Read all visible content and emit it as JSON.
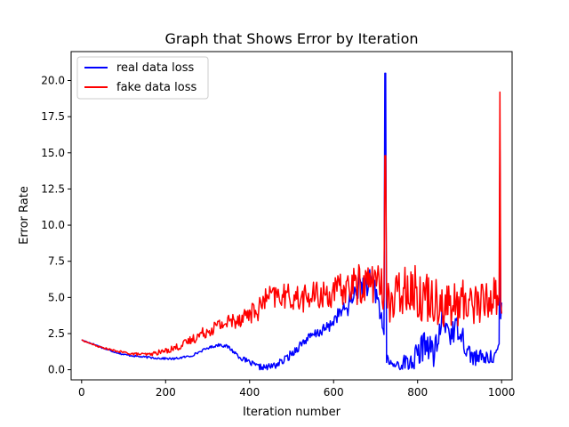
{
  "chart_data": {
    "type": "line",
    "title": "Graph that Shows Error by Iteration",
    "xlabel": "Iteration number",
    "ylabel": "Error Rate",
    "xlim": [
      -25,
      1025
    ],
    "ylim": [
      -0.7,
      22.0
    ],
    "x_ticks": [
      0,
      200,
      400,
      600,
      800,
      1000
    ],
    "x_tick_labels": [
      "0",
      "200",
      "400",
      "600",
      "800",
      "1000"
    ],
    "y_ticks": [
      0.0,
      2.5,
      5.0,
      7.5,
      10.0,
      12.5,
      15.0,
      17.5,
      20.0
    ],
    "y_tick_labels": [
      "0.0",
      "2.5",
      "5.0",
      "7.5",
      "10.0",
      "12.5",
      "15.0",
      "17.5",
      "20.0"
    ],
    "grid": false,
    "legend_position": "top-left",
    "series": [
      {
        "name": "real data loss",
        "color": "#0000ff",
        "anchors": [
          [
            0,
            2.05
          ],
          [
            30,
            1.75
          ],
          [
            60,
            1.4
          ],
          [
            100,
            1.05
          ],
          [
            140,
            0.9
          ],
          [
            180,
            0.8
          ],
          [
            220,
            0.75
          ],
          [
            260,
            0.95
          ],
          [
            300,
            1.5
          ],
          [
            330,
            1.75
          ],
          [
            350,
            1.55
          ],
          [
            380,
            0.8
          ],
          [
            420,
            0.2
          ],
          [
            440,
            0.15
          ],
          [
            460,
            0.3
          ],
          [
            480,
            0.6
          ],
          [
            500,
            1.1
          ],
          [
            530,
            2.0
          ],
          [
            560,
            2.5
          ],
          [
            590,
            3.0
          ],
          [
            610,
            3.8
          ],
          [
            630,
            4.2
          ],
          [
            660,
            5.8
          ],
          [
            680,
            6.0
          ],
          [
            700,
            5.5
          ],
          [
            715,
            3.5
          ],
          [
            725,
            0.8
          ],
          [
            740,
            0.3
          ],
          [
            760,
            0.4
          ],
          [
            780,
            0.5
          ],
          [
            800,
            0.9
          ],
          [
            820,
            2.0
          ],
          [
            840,
            1.0
          ],
          [
            860,
            3.5
          ],
          [
            880,
            2.5
          ],
          [
            900,
            3.0
          ],
          [
            920,
            1.2
          ],
          [
            940,
            0.8
          ],
          [
            960,
            0.8
          ],
          [
            980,
            0.9
          ],
          [
            994,
            1.5
          ],
          [
            1000,
            4.5
          ]
        ],
        "spikes": [
          [
            723,
            20.5
          ],
          [
            996,
            15.2
          ]
        ],
        "noise": [
          [
            0,
            0.05
          ],
          [
            300,
            0.08
          ],
          [
            600,
            0.4
          ],
          [
            700,
            1.2
          ],
          [
            730,
            0.25
          ],
          [
            800,
            1.0
          ],
          [
            900,
            0.9
          ],
          [
            1000,
            0.3
          ]
        ]
      },
      {
        "name": "fake data loss",
        "color": "#ff0000",
        "anchors": [
          [
            0,
            2.05
          ],
          [
            40,
            1.6
          ],
          [
            80,
            1.3
          ],
          [
            120,
            1.1
          ],
          [
            160,
            1.05
          ],
          [
            200,
            1.3
          ],
          [
            240,
            1.7
          ],
          [
            280,
            2.4
          ],
          [
            320,
            3.0
          ],
          [
            360,
            3.4
          ],
          [
            400,
            3.9
          ],
          [
            420,
            4.1
          ],
          [
            440,
            5.0
          ],
          [
            480,
            5.1
          ],
          [
            520,
            4.9
          ],
          [
            560,
            5.1
          ],
          [
            600,
            5.3
          ],
          [
            640,
            5.8
          ],
          [
            680,
            6.0
          ],
          [
            700,
            6.3
          ],
          [
            720,
            5.0
          ],
          [
            740,
            4.5
          ],
          [
            760,
            5.5
          ],
          [
            780,
            6.0
          ],
          [
            800,
            5.2
          ],
          [
            840,
            5.0
          ],
          [
            880,
            4.3
          ],
          [
            920,
            4.8
          ],
          [
            960,
            4.6
          ],
          [
            980,
            5.2
          ],
          [
            1000,
            5.0
          ]
        ],
        "spikes": [
          [
            723,
            14.8
          ],
          [
            996,
            19.2
          ]
        ],
        "noise": [
          [
            0,
            0.03
          ],
          [
            150,
            0.1
          ],
          [
            250,
            0.3
          ],
          [
            350,
            0.6
          ],
          [
            450,
            0.8
          ],
          [
            600,
            1.1
          ],
          [
            700,
            1.6
          ],
          [
            800,
            1.8
          ],
          [
            1000,
            1.5
          ]
        ]
      }
    ]
  }
}
